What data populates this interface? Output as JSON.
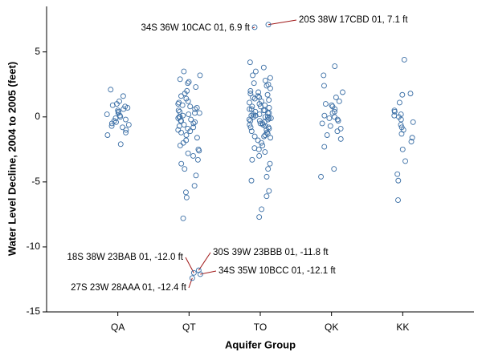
{
  "chart_data": {
    "type": "strip",
    "x_label": "Aquifer Group",
    "y_label": "Water Level Decline, 2004 to 2005 (feet)",
    "ylim": [
      -15,
      8.5
    ],
    "yticks": [
      -15,
      -10,
      -5,
      0,
      5
    ],
    "color": "#3a6ea5",
    "annotation_color": "#a01818",
    "groups": [
      {
        "name": "QA",
        "values": [
          2.1,
          1.6,
          1.2,
          1.0,
          0.9,
          0.8,
          0.6,
          0.5,
          0.4,
          0.3,
          0.2,
          0.1,
          0,
          -0.1,
          -0.2,
          -0.3,
          -0.4,
          -0.5,
          -0.6,
          -0.8,
          -1.0,
          -1.2,
          -1.4,
          -2.1,
          0.7,
          -0.7
        ],
        "annotations": []
      },
      {
        "name": "QT",
        "values": [
          3.5,
          3.2,
          2.9,
          2.6,
          2.3,
          2.0,
          1.8,
          1.6,
          1.4,
          1.2,
          1.0,
          0.9,
          0.8,
          0.7,
          0.6,
          0.5,
          0.4,
          0.3,
          0.2,
          0.1,
          0,
          0,
          -0.1,
          -0.2,
          -0.3,
          -0.4,
          -0.5,
          -0.6,
          -0.7,
          -0.8,
          -0.9,
          -1.0,
          -1.2,
          -1.4,
          -1.6,
          -1.8,
          -2.0,
          -2.2,
          -2.5,
          -2.8,
          -3.0,
          -3.3,
          -3.6,
          -4.0,
          -4.5,
          -5.3,
          -5.8,
          -6.2,
          -7.8,
          1.1,
          -1.1,
          0.3,
          -0.3,
          2.7,
          -2.6
        ],
        "annotations": [
          {
            "label": "18S 38W 23BAB 01, -12.0 ft",
            "value": -12.0
          },
          {
            "label": "30S 39W 23BBB 01, -11.8 ft",
            "value": -11.8
          },
          {
            "label": "34S 35W 10BCC 01, -12.1 ft",
            "value": -12.1
          },
          {
            "label": "27S 23W 28AAA 01, -12.4 ft",
            "value": -12.4
          }
        ]
      },
      {
        "name": "TO",
        "values": [
          4.2,
          3.8,
          3.5,
          3.2,
          3.0,
          2.8,
          2.6,
          2.4,
          2.2,
          2.0,
          1.9,
          1.8,
          1.7,
          1.6,
          1.5,
          1.4,
          1.3,
          1.2,
          1.1,
          1.0,
          0.9,
          0.8,
          0.7,
          0.6,
          0.5,
          0.4,
          0.3,
          0.2,
          0.1,
          0,
          0,
          0,
          -0.1,
          -0.2,
          -0.3,
          -0.4,
          -0.5,
          -0.6,
          -0.7,
          -0.8,
          -0.9,
          -1.0,
          -1.1,
          -1.2,
          -1.3,
          -1.4,
          -1.5,
          -1.6,
          -1.8,
          -2.0,
          -2.2,
          -2.4,
          -2.7,
          -3.0,
          -3.3,
          -3.6,
          -4.0,
          -4.6,
          -4.9,
          -5.7,
          -6.1,
          -7.1,
          -7.7,
          0.5,
          -0.5,
          0.3,
          -0.3,
          0.8,
          -0.8,
          1.5,
          -1.5,
          0.2,
          -0.2,
          0.1,
          -0.1,
          2.5,
          -2.5,
          0.6,
          -0.6
        ],
        "annotations": [
          {
            "label": "34S 36W 10CAC 01, 6.9 ft",
            "value": 6.9
          },
          {
            "label": "20S 38W 17CBD 01, 7.1 ft",
            "value": 7.1
          }
        ]
      },
      {
        "name": "QK",
        "values": [
          3.9,
          3.2,
          2.4,
          1.9,
          1.5,
          1.2,
          1.0,
          0.8,
          0.6,
          0.4,
          0.3,
          0.1,
          0,
          -0.1,
          -0.3,
          -0.5,
          -0.7,
          -0.9,
          -1.1,
          -1.4,
          -1.7,
          -2.3,
          -4.0,
          -4.6,
          0.9,
          -0.2
        ],
        "annotations": []
      },
      {
        "name": "KK",
        "values": [
          4.4,
          1.8,
          1.7,
          1.1,
          0.5,
          0.4,
          0.2,
          0.1,
          0,
          -0.2,
          -0.4,
          -0.6,
          -0.8,
          -1.0,
          -1.3,
          -1.6,
          -1.9,
          -2.5,
          -3.4,
          -4.4,
          -4.9,
          -6.4
        ],
        "annotations": []
      }
    ]
  }
}
